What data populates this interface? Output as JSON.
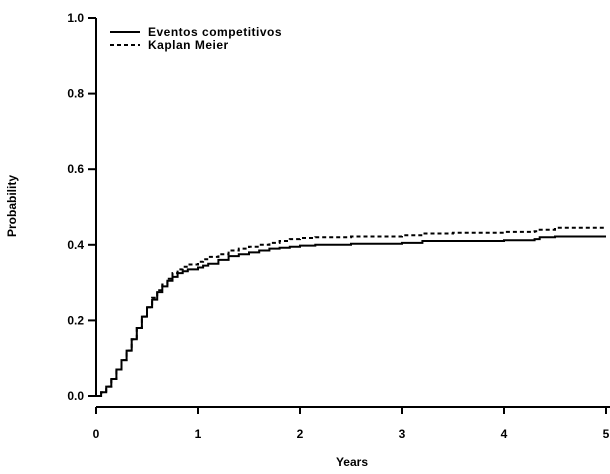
{
  "chart_data": {
    "type": "line",
    "title": "",
    "xlabel": "Years",
    "ylabel": "Probability",
    "xlim": [
      0,
      5
    ],
    "ylim": [
      0,
      1.0
    ],
    "x_ticks": [
      "0",
      "1",
      "2",
      "3",
      "4",
      "5"
    ],
    "y_ticks": [
      "0.0",
      "0.2",
      "0.4",
      "0.6",
      "0.8",
      "1.0"
    ],
    "grid": false,
    "legend_position": "top-left",
    "series": [
      {
        "name": "Eventos competitivos",
        "style": "solid",
        "color": "#000000",
        "x": [
          0,
          0.05,
          0.1,
          0.15,
          0.2,
          0.25,
          0.3,
          0.35,
          0.4,
          0.45,
          0.5,
          0.55,
          0.6,
          0.65,
          0.7,
          0.75,
          0.8,
          0.85,
          0.9,
          1.0,
          1.05,
          1.1,
          1.2,
          1.3,
          1.4,
          1.5,
          1.6,
          1.7,
          1.8,
          1.9,
          2.0,
          2.15,
          2.5,
          3.0,
          3.2,
          3.5,
          4.0,
          4.3,
          4.35,
          4.5,
          5.0
        ],
        "y": [
          0.0,
          0.01,
          0.025,
          0.045,
          0.07,
          0.095,
          0.12,
          0.15,
          0.18,
          0.21,
          0.235,
          0.255,
          0.275,
          0.29,
          0.305,
          0.315,
          0.325,
          0.33,
          0.335,
          0.34,
          0.345,
          0.35,
          0.36,
          0.37,
          0.375,
          0.38,
          0.385,
          0.39,
          0.392,
          0.395,
          0.398,
          0.4,
          0.403,
          0.405,
          0.41,
          0.41,
          0.412,
          0.415,
          0.42,
          0.422,
          0.422
        ]
      },
      {
        "name": "Kaplan Meier",
        "style": "dashed",
        "color": "#000000",
        "x": [
          0,
          0.05,
          0.1,
          0.15,
          0.2,
          0.25,
          0.3,
          0.35,
          0.4,
          0.45,
          0.5,
          0.55,
          0.6,
          0.65,
          0.7,
          0.75,
          0.8,
          0.85,
          0.9,
          1.0,
          1.05,
          1.1,
          1.2,
          1.3,
          1.4,
          1.5,
          1.6,
          1.7,
          1.8,
          1.9,
          2.0,
          2.15,
          2.5,
          3.0,
          3.2,
          3.5,
          4.0,
          4.3,
          4.35,
          4.5,
          5.0
        ],
        "y": [
          0.0,
          0.01,
          0.025,
          0.045,
          0.07,
          0.095,
          0.12,
          0.15,
          0.18,
          0.21,
          0.235,
          0.26,
          0.28,
          0.295,
          0.31,
          0.325,
          0.335,
          0.342,
          0.348,
          0.355,
          0.362,
          0.368,
          0.375,
          0.385,
          0.39,
          0.395,
          0.4,
          0.405,
          0.41,
          0.415,
          0.418,
          0.42,
          0.422,
          0.425,
          0.43,
          0.432,
          0.434,
          0.436,
          0.44,
          0.445,
          0.445
        ]
      }
    ]
  }
}
